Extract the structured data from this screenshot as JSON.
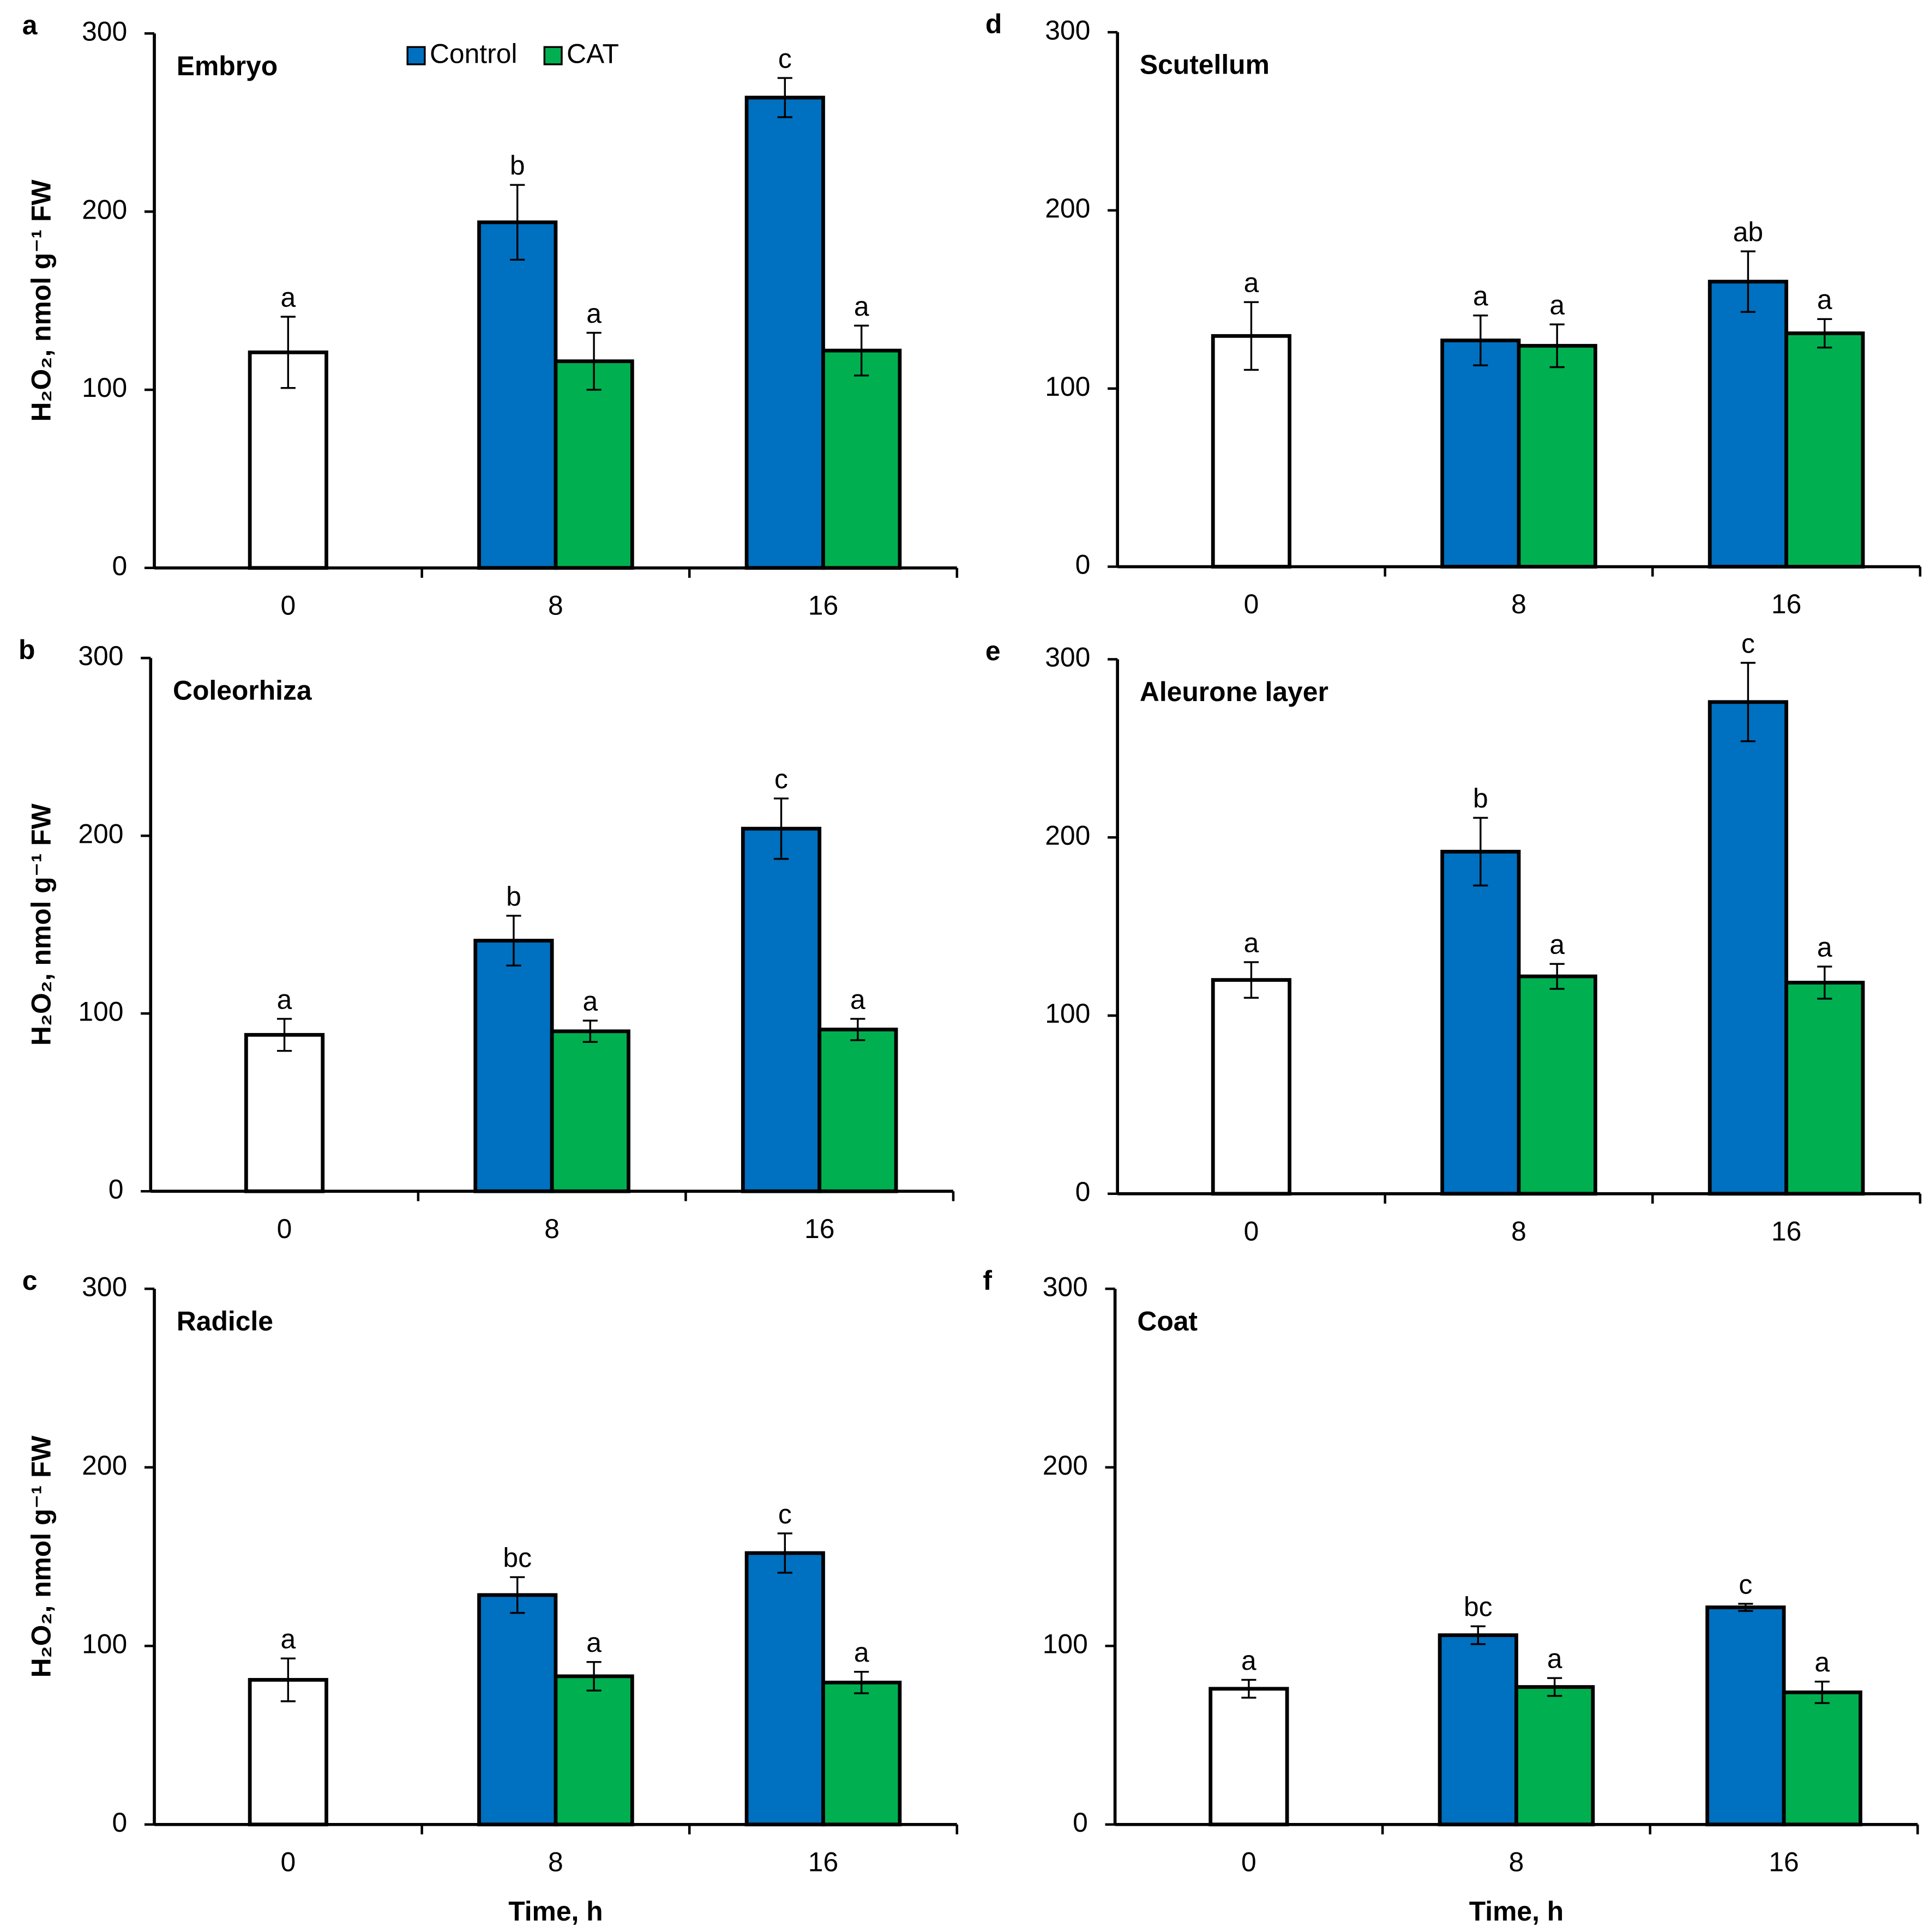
{
  "chart_data": [
    {
      "type": "bar",
      "panel": "a",
      "title": "Embryo",
      "ylabel": "H₂O₂, nmol g⁻¹ FW",
      "categories": [
        "0",
        "8",
        "16"
      ],
      "ylim": [
        0,
        300
      ],
      "yticks": [
        0,
        100,
        200,
        300
      ],
      "legend": "top",
      "series": [
        {
          "color": "#ffffff",
          "values": [
            121,
            null,
            null
          ],
          "errors": [
            20,
            null,
            null
          ],
          "letters": [
            "a",
            null,
            null
          ]
        },
        {
          "name": "Control",
          "color": "#0070c0",
          "values": [
            null,
            194,
            264
          ],
          "errors": [
            null,
            21,
            11
          ],
          "letters": [
            null,
            "b",
            "c"
          ]
        },
        {
          "name": "CAT",
          "color": "#00b050",
          "values": [
            null,
            116,
            122
          ],
          "errors": [
            null,
            16,
            14
          ],
          "letters": [
            null,
            "a",
            "a"
          ]
        }
      ]
    },
    {
      "type": "bar",
      "panel": "b",
      "title": "Coleorhiza",
      "ylabel": "H₂O₂, nmol g⁻¹ FW",
      "categories": [
        "0",
        "8",
        "16"
      ],
      "ylim": [
        0,
        300
      ],
      "yticks": [
        0,
        100,
        200,
        300
      ],
      "series": [
        {
          "color": "#ffffff",
          "values": [
            88,
            null,
            null
          ],
          "errors": [
            9,
            null,
            null
          ],
          "letters": [
            "a",
            null,
            null
          ]
        },
        {
          "color": "#0070c0",
          "values": [
            null,
            141,
            204
          ],
          "errors": [
            null,
            14,
            17
          ],
          "letters": [
            null,
            "b",
            "c"
          ]
        },
        {
          "color": "#00b050",
          "values": [
            null,
            90,
            91
          ],
          "errors": [
            null,
            6,
            6
          ],
          "letters": [
            null,
            "a",
            "a"
          ]
        }
      ]
    },
    {
      "type": "bar",
      "panel": "c",
      "title": "Radicle",
      "ylabel": "H₂O₂, nmol g⁻¹ FW",
      "xlabel": "Time, h",
      "categories": [
        "0",
        "8",
        "16"
      ],
      "ylim": [
        0,
        300
      ],
      "yticks": [
        0,
        100,
        200,
        300
      ],
      "series": [
        {
          "color": "#ffffff",
          "values": [
            81,
            null,
            null
          ],
          "errors": [
            12,
            null,
            null
          ],
          "letters": [
            "a",
            null,
            null
          ]
        },
        {
          "color": "#0070c0",
          "values": [
            null,
            128.5,
            152
          ],
          "errors": [
            null,
            10,
            11
          ],
          "letters": [
            null,
            "bc",
            "c"
          ]
        },
        {
          "color": "#00b050",
          "values": [
            null,
            83,
            79.5
          ],
          "errors": [
            null,
            8,
            6
          ],
          "letters": [
            null,
            "a",
            "a"
          ]
        }
      ]
    },
    {
      "type": "bar",
      "panel": "d",
      "title": "Scutellum",
      "categories": [
        "0",
        "8",
        "16"
      ],
      "ylim": [
        0,
        300
      ],
      "yticks": [
        0,
        100,
        200,
        300
      ],
      "series": [
        {
          "color": "#ffffff",
          "values": [
            129.5,
            null,
            null
          ],
          "errors": [
            19,
            null,
            null
          ],
          "letters": [
            "a",
            null,
            null
          ]
        },
        {
          "color": "#0070c0",
          "values": [
            null,
            127,
            160
          ],
          "errors": [
            null,
            14,
            17
          ],
          "letters": [
            null,
            "a",
            "ab"
          ]
        },
        {
          "color": "#00b050",
          "values": [
            null,
            124,
            131
          ],
          "errors": [
            null,
            12,
            8
          ],
          "letters": [
            null,
            "a",
            "a"
          ]
        }
      ]
    },
    {
      "type": "bar",
      "panel": "e",
      "title": "Aleurone layer",
      "categories": [
        "0",
        "8",
        "16"
      ],
      "ylim": [
        0,
        300
      ],
      "yticks": [
        0,
        100,
        200,
        300
      ],
      "series": [
        {
          "color": "#ffffff",
          "values": [
            120,
            null,
            null
          ],
          "errors": [
            10,
            null,
            null
          ],
          "letters": [
            "a",
            null,
            null
          ]
        },
        {
          "color": "#0070c0",
          "values": [
            null,
            192,
            276
          ],
          "errors": [
            null,
            19,
            22
          ],
          "letters": [
            null,
            "b",
            "c"
          ]
        },
        {
          "color": "#00b050",
          "values": [
            null,
            122,
            118.5
          ],
          "errors": [
            null,
            7,
            9
          ],
          "letters": [
            null,
            "a",
            "a"
          ]
        }
      ]
    },
    {
      "type": "bar",
      "panel": "f",
      "title": "Coat",
      "xlabel": "Time, h",
      "categories": [
        "0",
        "8",
        "16"
      ],
      "ylim": [
        0,
        300
      ],
      "yticks": [
        0,
        100,
        200,
        300
      ],
      "series": [
        {
          "color": "#ffffff",
          "values": [
            76,
            null,
            null
          ],
          "errors": [
            5,
            null,
            null
          ],
          "letters": [
            "a",
            null,
            null
          ]
        },
        {
          "color": "#0070c0",
          "values": [
            null,
            106,
            121.6
          ],
          "errors": [
            null,
            5,
            2
          ],
          "letters": [
            null,
            "bc",
            "c"
          ]
        },
        {
          "color": "#00b050",
          "values": [
            null,
            77,
            74
          ],
          "errors": [
            null,
            5,
            6
          ],
          "letters": [
            null,
            "a",
            "a"
          ]
        }
      ]
    }
  ]
}
